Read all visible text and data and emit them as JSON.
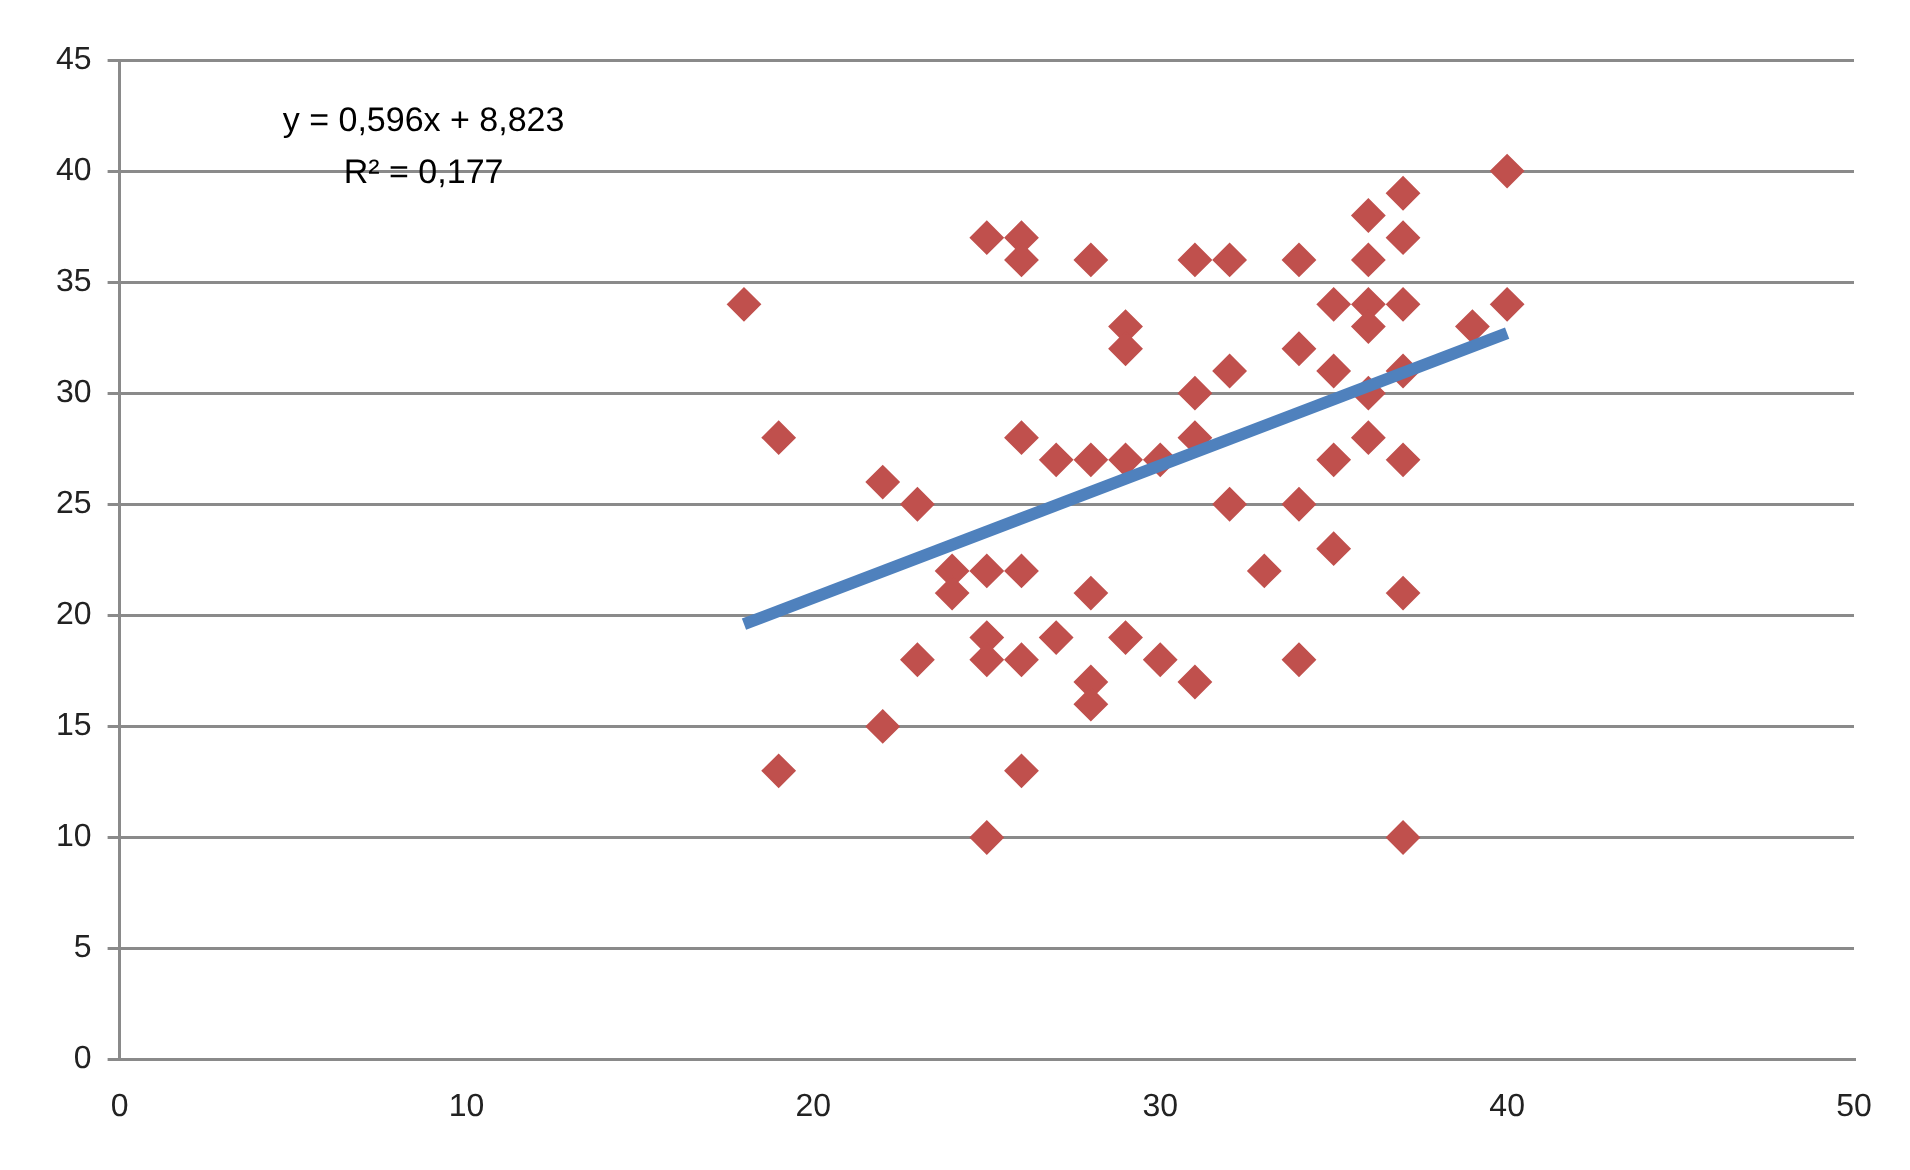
{
  "chart_data": {
    "type": "scatter",
    "grid": "y",
    "legend": false,
    "xlim": [
      0,
      50
    ],
    "xticks": [
      0,
      10,
      20,
      30,
      40,
      50
    ],
    "ylim": [
      0,
      45
    ],
    "yticks": [
      0,
      5,
      10,
      15,
      20,
      25,
      30,
      35,
      40,
      45
    ],
    "annotations": [
      "y = 0,596x + 8,823",
      "R² = 0,177"
    ],
    "series": [
      {
        "marker": "diamond",
        "color": "#c0504d",
        "x": [
          18,
          19,
          19,
          22,
          22,
          23,
          23,
          24,
          24,
          25,
          25,
          25,
          25,
          25,
          26,
          26,
          26,
          26,
          26,
          26,
          27,
          27,
          28,
          28,
          28,
          28,
          28,
          29,
          29,
          29,
          29,
          30,
          30,
          31,
          31,
          31,
          31,
          32,
          32,
          32,
          33,
          34,
          34,
          34,
          34,
          35,
          35,
          35,
          35,
          36,
          36,
          36,
          36,
          36,
          36,
          37,
          37,
          37,
          37,
          37,
          37,
          37,
          39,
          40,
          40
        ],
        "values": [
          34,
          28,
          13,
          26,
          15,
          25,
          18,
          22,
          21,
          37,
          22,
          19,
          18,
          10,
          37,
          36,
          28,
          22,
          18,
          13,
          27,
          19,
          36,
          27,
          21,
          17,
          16,
          33,
          32,
          27,
          19,
          27,
          18,
          36,
          30,
          28,
          17,
          36,
          31,
          25,
          22,
          36,
          32,
          25,
          18,
          34,
          31,
          27,
          23,
          38,
          36,
          34,
          33,
          30,
          28,
          39,
          37,
          34,
          31,
          27,
          21,
          10,
          33,
          40,
          34
        ]
      },
      {
        "type": "line",
        "marker": "none",
        "color": "#4f81bd",
        "x": [
          18,
          40
        ],
        "values": [
          19.6,
          32.7
        ]
      }
    ]
  }
}
